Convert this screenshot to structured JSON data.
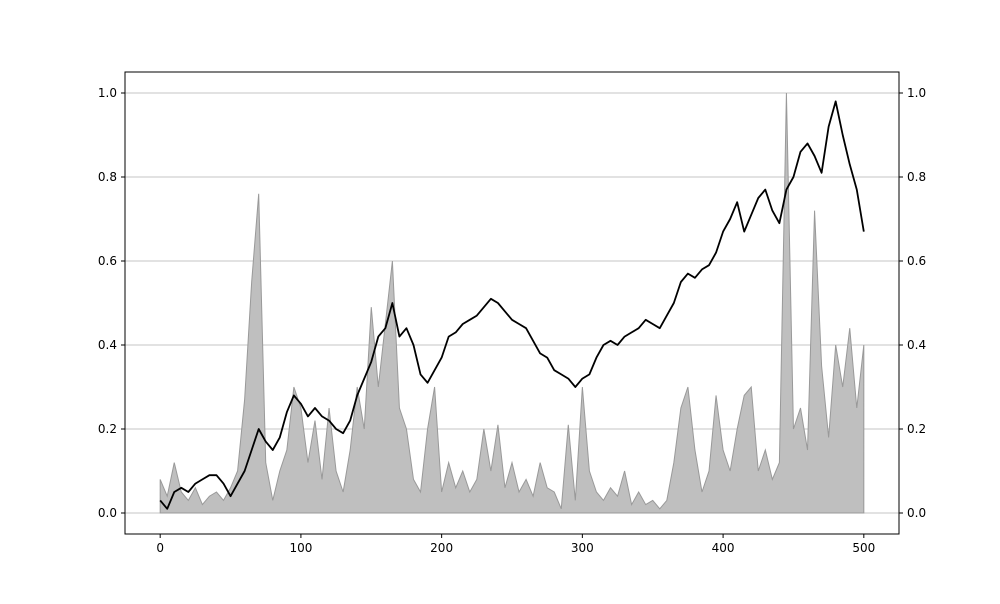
{
  "chart_data": {
    "type": "line-area",
    "x": [
      0,
      5,
      10,
      15,
      20,
      25,
      30,
      35,
      40,
      45,
      50,
      55,
      60,
      65,
      70,
      75,
      80,
      85,
      90,
      95,
      100,
      105,
      110,
      115,
      120,
      125,
      130,
      135,
      140,
      145,
      150,
      155,
      160,
      165,
      170,
      175,
      180,
      185,
      190,
      195,
      200,
      205,
      210,
      215,
      220,
      225,
      230,
      235,
      240,
      245,
      250,
      255,
      260,
      265,
      270,
      275,
      280,
      285,
      290,
      295,
      300,
      305,
      310,
      315,
      320,
      325,
      330,
      335,
      340,
      345,
      350,
      355,
      360,
      365,
      370,
      375,
      380,
      385,
      390,
      395,
      400,
      405,
      410,
      415,
      420,
      425,
      430,
      435,
      440,
      445,
      450,
      455,
      460,
      465,
      470,
      475,
      480,
      485,
      490,
      495,
      500
    ],
    "series": [
      {
        "kind": "area",
        "axis": "y2",
        "color": "#bfbfbf",
        "edgecolor": "#999999",
        "values": [
          0.08,
          0.04,
          0.12,
          0.05,
          0.03,
          0.06,
          0.02,
          0.04,
          0.05,
          0.03,
          0.06,
          0.1,
          0.27,
          0.55,
          0.76,
          0.12,
          0.03,
          0.1,
          0.15,
          0.3,
          0.25,
          0.12,
          0.22,
          0.08,
          0.25,
          0.1,
          0.05,
          0.15,
          0.3,
          0.2,
          0.49,
          0.3,
          0.45,
          0.6,
          0.25,
          0.2,
          0.08,
          0.05,
          0.2,
          0.3,
          0.05,
          0.12,
          0.06,
          0.1,
          0.05,
          0.08,
          0.2,
          0.1,
          0.21,
          0.06,
          0.12,
          0.05,
          0.08,
          0.04,
          0.12,
          0.06,
          0.05,
          0.01,
          0.21,
          0.03,
          0.3,
          0.1,
          0.05,
          0.03,
          0.06,
          0.04,
          0.1,
          0.02,
          0.05,
          0.02,
          0.03,
          0.01,
          0.03,
          0.12,
          0.25,
          0.3,
          0.15,
          0.05,
          0.1,
          0.28,
          0.15,
          0.1,
          0.2,
          0.28,
          0.3,
          0.1,
          0.15,
          0.08,
          0.12,
          1.0,
          0.2,
          0.25,
          0.15,
          0.72,
          0.35,
          0.18,
          0.4,
          0.3,
          0.44,
          0.25,
          0.4
        ]
      },
      {
        "kind": "line",
        "color": "#000000",
        "values": [
          0.03,
          0.01,
          0.05,
          0.06,
          0.05,
          0.07,
          0.08,
          0.09,
          0.09,
          0.07,
          0.04,
          0.07,
          0.1,
          0.15,
          0.2,
          0.17,
          0.15,
          0.18,
          0.24,
          0.28,
          0.26,
          0.23,
          0.25,
          0.23,
          0.22,
          0.2,
          0.19,
          0.22,
          0.28,
          0.32,
          0.36,
          0.42,
          0.44,
          0.5,
          0.42,
          0.44,
          0.4,
          0.33,
          0.31,
          0.34,
          0.37,
          0.42,
          0.43,
          0.45,
          0.46,
          0.47,
          0.49,
          0.51,
          0.5,
          0.48,
          0.46,
          0.45,
          0.44,
          0.41,
          0.38,
          0.37,
          0.34,
          0.33,
          0.32,
          0.3,
          0.32,
          0.33,
          0.37,
          0.4,
          0.41,
          0.4,
          0.42,
          0.43,
          0.44,
          0.46,
          0.45,
          0.44,
          0.47,
          0.5,
          0.55,
          0.57,
          0.56,
          0.58,
          0.59,
          0.62,
          0.67,
          0.7,
          0.74,
          0.67,
          0.71,
          0.75,
          0.77,
          0.72,
          0.69,
          0.77,
          0.8,
          0.86,
          0.88,
          0.85,
          0.81,
          0.92,
          0.98,
          0.9,
          0.83,
          0.77,
          0.67
        ]
      }
    ],
    "xlim": [
      -25,
      525
    ],
    "xticks": [
      0,
      100,
      200,
      300,
      400,
      500
    ],
    "ylim": [
      -0.05,
      1.05
    ],
    "yticks": [
      {
        "value": 0,
        "label": "0.0"
      },
      0.2,
      0.4,
      0.6,
      0.8,
      {
        "value": 1,
        "label": "1.0"
      }
    ],
    "y2lim": [
      -0.05,
      1.05
    ],
    "y2ticks": [
      {
        "value": 0,
        "label": "0.0"
      },
      0.2,
      0.4,
      0.6,
      0.8,
      {
        "value": 1,
        "label": "1.0"
      }
    ],
    "grid": true
  }
}
